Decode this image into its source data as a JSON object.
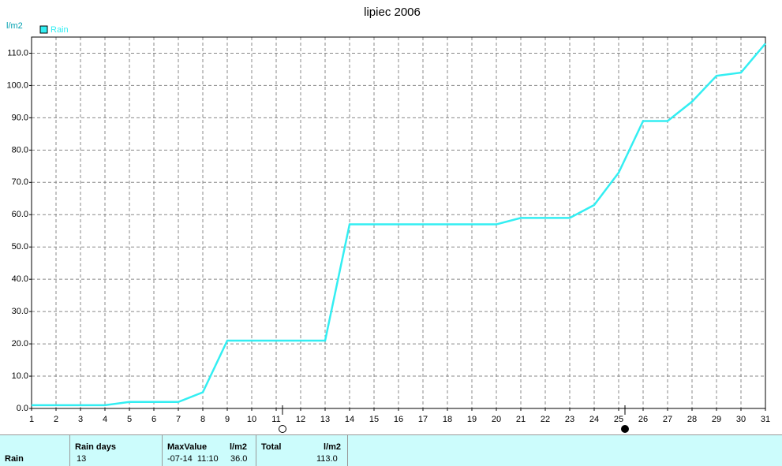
{
  "chart_data": {
    "type": "line",
    "title": "lipiec 2006",
    "y_label": "l/m2",
    "x": [
      1,
      2,
      3,
      4,
      5,
      6,
      7,
      8,
      9,
      10,
      11,
      12,
      13,
      14,
      15,
      16,
      17,
      18,
      19,
      20,
      21,
      22,
      23,
      24,
      25,
      26,
      27,
      28,
      29,
      30,
      31
    ],
    "series": [
      {
        "name": "Rain",
        "color": "#33eef2",
        "values": [
          1,
          1,
          1,
          1,
          2,
          2,
          2,
          5,
          21,
          21,
          21,
          21,
          21,
          57,
          57,
          57,
          57,
          57,
          57,
          57,
          59,
          59,
          59,
          63,
          73,
          89,
          89,
          95,
          103,
          104,
          113
        ]
      }
    ],
    "xlim": [
      1,
      31
    ],
    "xticks": [
      1,
      2,
      3,
      4,
      5,
      6,
      7,
      8,
      9,
      10,
      11,
      12,
      13,
      14,
      15,
      16,
      17,
      18,
      19,
      20,
      21,
      22,
      23,
      24,
      25,
      26,
      27,
      28,
      29,
      30,
      31
    ],
    "ylim": [
      0,
      115
    ],
    "yticks": [
      {
        "value": 0,
        "label": "0.0"
      },
      {
        "value": 10,
        "label": "10.0"
      },
      {
        "value": 20,
        "label": "20.0"
      },
      {
        "value": 30,
        "label": "30.0"
      },
      {
        "value": 40,
        "label": "40.0"
      },
      {
        "value": 50,
        "label": "50.0"
      },
      {
        "value": 60,
        "label": "60.0"
      },
      {
        "value": 70,
        "label": "70.0"
      },
      {
        "value": 80,
        "label": "80.0"
      },
      {
        "value": 90,
        "label": "90.0"
      },
      {
        "value": 100,
        "label": "100.0"
      },
      {
        "value": 110,
        "label": "110.0"
      }
    ],
    "grid": true,
    "legend": "top-left"
  },
  "summary": {
    "row_label": "Rain",
    "rain_days_header": "Rain days",
    "rain_days": "13",
    "max_header": "MaxValue",
    "max_unit": "l/m2",
    "max_time": "-07-14  11:10",
    "max_value": "36.0",
    "total_header": "Total",
    "total_unit": "l/m2",
    "total_value": "113.0"
  }
}
